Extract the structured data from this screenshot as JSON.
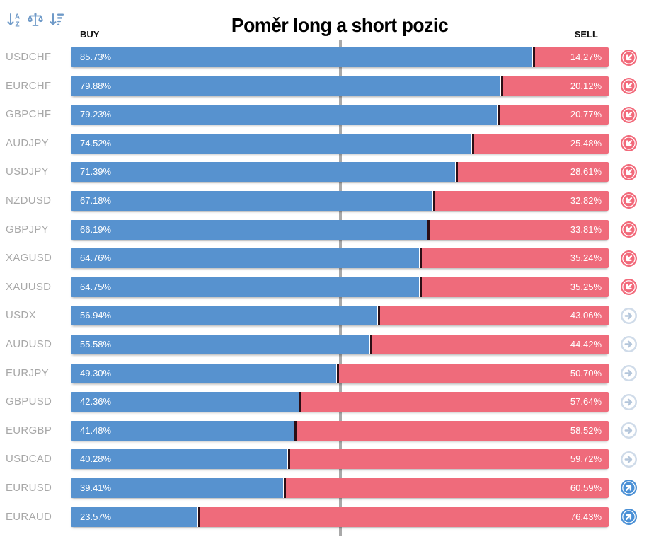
{
  "title": "Poměr long a short pozic",
  "columns": {
    "buy_label": "BUY",
    "sell_label": "SELL"
  },
  "toolbar": {
    "sort_alpha_tooltip": "sort-alphabetical",
    "balance_tooltip": "balance-scale",
    "sort_amount_tooltip": "sort-by-value"
  },
  "colors": {
    "buy_bar": "#5792cf",
    "sell_bar": "#ef6b7b",
    "junction_line": "#2c0e15",
    "center_line": "#a9a9a9",
    "pair_label": "#a8a8a8",
    "toolbar_icon": "#6f9ac8",
    "signal_sell": "#f2697a",
    "signal_buy": "#4a90d6",
    "signal_neutral_ring": "#cfdbe9",
    "signal_neutral_arrow": "#b4c6db"
  },
  "signals": {
    "sell": {
      "style": "filled",
      "color": "#f2697a",
      "direction": "down-left"
    },
    "neutral": {
      "style": "outline",
      "color": "#cfdbe9",
      "arrow_color": "#b4c6db",
      "direction": "right"
    },
    "buy": {
      "style": "filled",
      "color": "#4a90d6",
      "direction": "up-right"
    }
  },
  "rows": [
    {
      "pair": "USDCHF",
      "buy": 85.73,
      "sell": 14.27,
      "buy_label": "85.73%",
      "sell_label": "14.27%",
      "signal": "sell"
    },
    {
      "pair": "EURCHF",
      "buy": 79.88,
      "sell": 20.12,
      "buy_label": "79.88%",
      "sell_label": "20.12%",
      "signal": "sell"
    },
    {
      "pair": "GBPCHF",
      "buy": 79.23,
      "sell": 20.77,
      "buy_label": "79.23%",
      "sell_label": "20.77%",
      "signal": "sell"
    },
    {
      "pair": "AUDJPY",
      "buy": 74.52,
      "sell": 25.48,
      "buy_label": "74.52%",
      "sell_label": "25.48%",
      "signal": "sell"
    },
    {
      "pair": "USDJPY",
      "buy": 71.39,
      "sell": 28.61,
      "buy_label": "71.39%",
      "sell_label": "28.61%",
      "signal": "sell"
    },
    {
      "pair": "NZDUSD",
      "buy": 67.18,
      "sell": 32.82,
      "buy_label": "67.18%",
      "sell_label": "32.82%",
      "signal": "sell"
    },
    {
      "pair": "GBPJPY",
      "buy": 66.19,
      "sell": 33.81,
      "buy_label": "66.19%",
      "sell_label": "33.81%",
      "signal": "sell"
    },
    {
      "pair": "XAGUSD",
      "buy": 64.76,
      "sell": 35.24,
      "buy_label": "64.76%",
      "sell_label": "35.24%",
      "signal": "sell"
    },
    {
      "pair": "XAUUSD",
      "buy": 64.75,
      "sell": 35.25,
      "buy_label": "64.75%",
      "sell_label": "35.25%",
      "signal": "sell"
    },
    {
      "pair": "USDX",
      "buy": 56.94,
      "sell": 43.06,
      "buy_label": "56.94%",
      "sell_label": "43.06%",
      "signal": "neutral"
    },
    {
      "pair": "AUDUSD",
      "buy": 55.58,
      "sell": 44.42,
      "buy_label": "55.58%",
      "sell_label": "44.42%",
      "signal": "neutral"
    },
    {
      "pair": "EURJPY",
      "buy": 49.3,
      "sell": 50.7,
      "buy_label": "49.30%",
      "sell_label": "50.70%",
      "signal": "neutral"
    },
    {
      "pair": "GBPUSD",
      "buy": 42.36,
      "sell": 57.64,
      "buy_label": "42.36%",
      "sell_label": "57.64%",
      "signal": "neutral"
    },
    {
      "pair": "EURGBP",
      "buy": 41.48,
      "sell": 58.52,
      "buy_label": "41.48%",
      "sell_label": "58.52%",
      "signal": "neutral"
    },
    {
      "pair": "USDCAD",
      "buy": 40.28,
      "sell": 59.72,
      "buy_label": "40.28%",
      "sell_label": "59.72%",
      "signal": "neutral"
    },
    {
      "pair": "EURUSD",
      "buy": 39.41,
      "sell": 60.59,
      "buy_label": "39.41%",
      "sell_label": "60.59%",
      "signal": "buy"
    },
    {
      "pair": "EURAUD",
      "buy": 23.57,
      "sell": 76.43,
      "buy_label": "23.57%",
      "sell_label": "76.43%",
      "signal": "buy"
    }
  ],
  "chart_data": {
    "type": "bar",
    "orientation": "horizontal-stacked",
    "title": "Poměr long a short pozic",
    "categories": [
      "USDCHF",
      "EURCHF",
      "GBPCHF",
      "AUDJPY",
      "USDJPY",
      "NZDUSD",
      "GBPJPY",
      "XAGUSD",
      "XAUUSD",
      "USDX",
      "AUDUSD",
      "EURJPY",
      "GBPUSD",
      "EURGBP",
      "USDCAD",
      "EURUSD",
      "EURAUD"
    ],
    "series": [
      {
        "name": "BUY",
        "color": "#5792cf",
        "values": [
          85.73,
          79.88,
          79.23,
          74.52,
          71.39,
          67.18,
          66.19,
          64.76,
          64.75,
          56.94,
          55.58,
          49.3,
          42.36,
          41.48,
          40.28,
          39.41,
          23.57
        ]
      },
      {
        "name": "SELL",
        "color": "#ef6b7b",
        "values": [
          14.27,
          20.12,
          20.77,
          25.48,
          28.61,
          32.82,
          33.81,
          35.24,
          35.25,
          43.06,
          44.42,
          50.7,
          57.64,
          58.52,
          59.72,
          60.59,
          76.43
        ]
      }
    ],
    "signal_per_category": [
      "sell",
      "sell",
      "sell",
      "sell",
      "sell",
      "sell",
      "sell",
      "sell",
      "sell",
      "neutral",
      "neutral",
      "neutral",
      "neutral",
      "neutral",
      "neutral",
      "buy",
      "buy"
    ],
    "xlim": [
      0,
      100
    ],
    "center_reference_line": 50,
    "value_labels": "percent-inside-bars",
    "grid": false,
    "legend_position": "top (BUY left, SELL right)"
  }
}
